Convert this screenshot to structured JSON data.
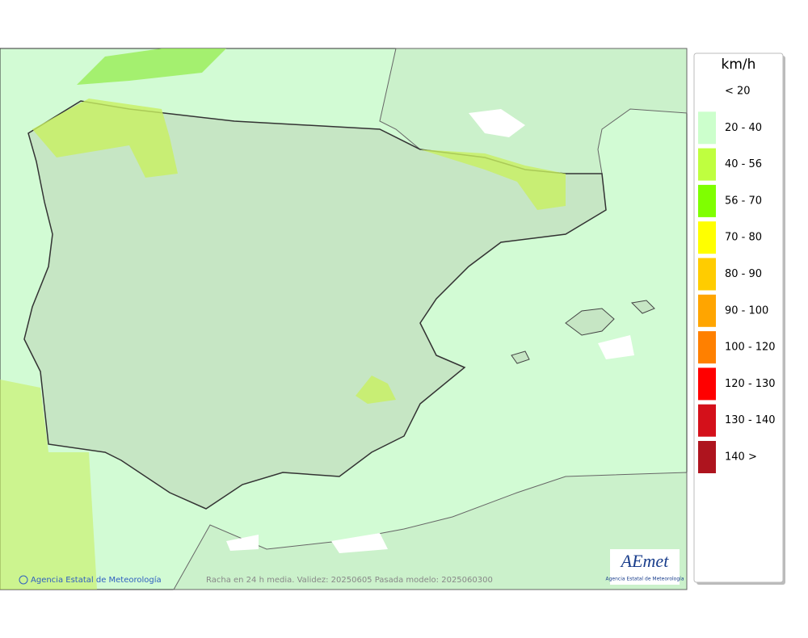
{
  "map": {
    "legend": {
      "title": "km/h",
      "items": [
        {
          "label": "< 20",
          "color": "#ffffff"
        },
        {
          "label": "20 - 40",
          "color": "#ccffcc"
        },
        {
          "label": "40 - 56",
          "color": "#bfff3f"
        },
        {
          "label": "56 - 70",
          "color": "#7fff00"
        },
        {
          "label": "70 - 80",
          "color": "#ffff00"
        },
        {
          "label": "80 - 90",
          "color": "#ffcc00"
        },
        {
          "label": "90 - 100",
          "color": "#ffa500"
        },
        {
          "label": "100 - 120",
          "color": "#ff8000"
        },
        {
          "label": "120 - 130",
          "color": "#ff0000"
        },
        {
          "label": "130 - 140",
          "color": "#d4101a"
        },
        {
          "label": "140 >",
          "color": "#ae141e"
        }
      ]
    },
    "footer": {
      "agency": "Agencia Estatal de Meteorología",
      "caption": "Racha en 24 h media. Validez: 20250605 Pasada modelo: 2025060300"
    },
    "logo": {
      "name": "AEmet",
      "subtitle": "Agencia Estatal de Meteorología"
    }
  }
}
